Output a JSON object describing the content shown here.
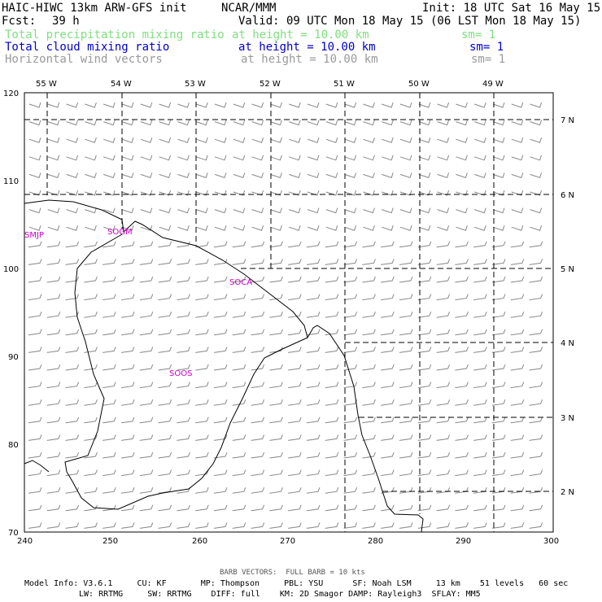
{
  "header": {
    "model": "HAIC-HIWC 13km ARW-GFS init",
    "org": "NCAR/MMM",
    "init": "Init: 18 UTC Sat 16 May 15",
    "fcst_label": "Fcst:",
    "fcst_value": "39 h",
    "valid": "Valid: 09 UTC Mon 18 May 15 (06 LST Mon 18 May 15)"
  },
  "fields": [
    {
      "name": "Total precipitation mixing ratio",
      "level": "at height = 10.00 km",
      "sm": "sm= 1",
      "color": "#7fdf7f"
    },
    {
      "name": "Total cloud mixing ratio",
      "level": "at height = 10.00 km",
      "sm": "sm= 1",
      "color": "#0000cc"
    },
    {
      "name": "Horizontal wind vectors",
      "level": "at height = 10.00 km",
      "sm": "sm= 1",
      "color": "#9a9a9a"
    }
  ],
  "map": {
    "lon_labels": [
      "55 W",
      "54 W",
      "53 W",
      "52 W",
      "51 W",
      "50 W",
      "49 W"
    ],
    "lat_labels": [
      "7 N",
      "6 N",
      "5 N",
      "4 N",
      "3 N",
      "2 N"
    ],
    "y_ticks": [
      "120",
      "110",
      "100",
      "90",
      "80",
      "70"
    ],
    "x_ticks": [
      "240",
      "250",
      "260",
      "270",
      "280",
      "290",
      "300"
    ],
    "stations": [
      "SMJP",
      "SOGM",
      "SOCA",
      "SOOS"
    ],
    "station_color": "#cc00cc"
  },
  "footer": {
    "barb": "BARB VECTORS:  FULL BARB = 10 kts",
    "line1": "Model Info: V3.6.1     CU: KF       MP: Thompson     PBL: YSU      SF: Noah LSM     13 km    51 levels   60 sec",
    "line2": "LW: RRTMG     SW: RRTMG    DIFF: full    KM: 2D Smagor DAMP: Rayleigh3  SFLAY: MM5"
  }
}
